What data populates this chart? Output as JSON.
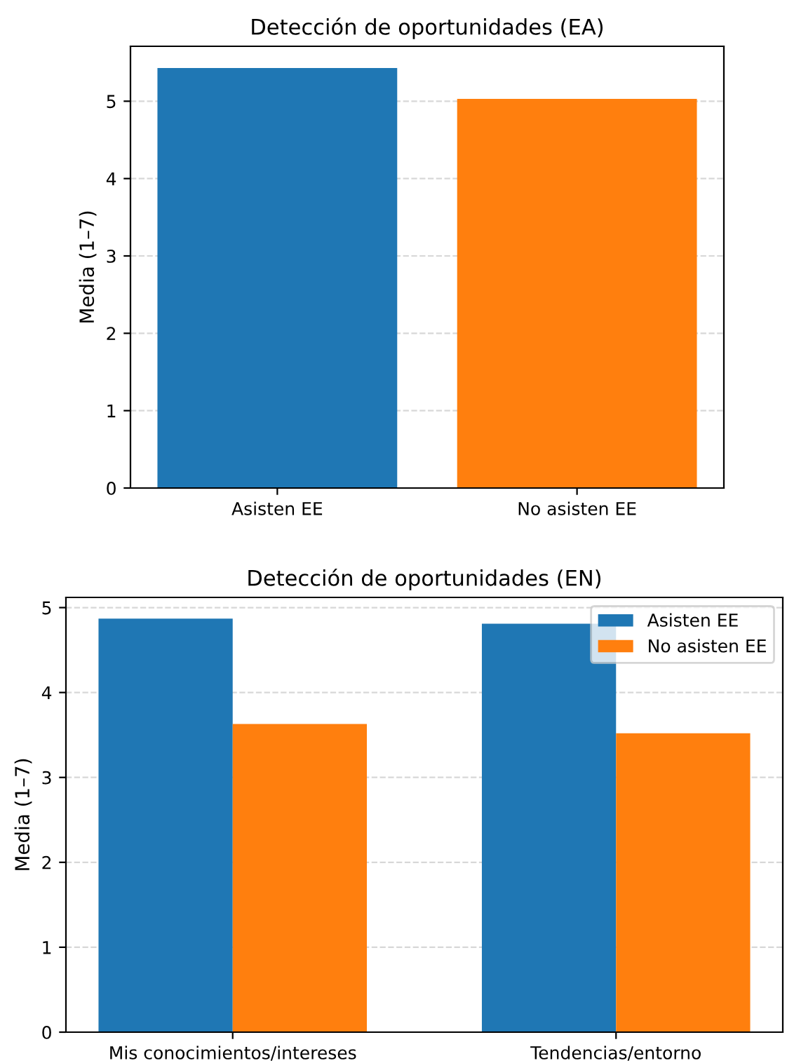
{
  "chart_data": [
    {
      "type": "bar",
      "title": "Detección de oportunidades (EA)",
      "ylabel": "Media (1–7)",
      "categories": [
        "Asisten EE",
        "No asisten EE"
      ],
      "values": [
        5.43,
        5.03
      ],
      "colors": [
        "#1f77b4",
        "#ff7f0e"
      ],
      "ylim": [
        0,
        5.71
      ],
      "yticks": [
        0,
        1,
        2,
        3,
        4,
        5
      ],
      "grid": "y"
    },
    {
      "type": "bar",
      "title": "Detección de oportunidades (EN)",
      "ylabel": "Media (1–7)",
      "categories": [
        "Mis conocimientos/intereses",
        "Tendencias/entorno"
      ],
      "series": [
        {
          "name": "Asisten EE",
          "color": "#1f77b4",
          "values": [
            4.87,
            4.81
          ]
        },
        {
          "name": "No asisten EE",
          "color": "#ff7f0e",
          "values": [
            3.63,
            3.52
          ]
        }
      ],
      "ylim": [
        0,
        5.12
      ],
      "yticks": [
        0,
        1,
        2,
        3,
        4,
        5
      ],
      "grid": "y",
      "legend": "top right"
    }
  ]
}
